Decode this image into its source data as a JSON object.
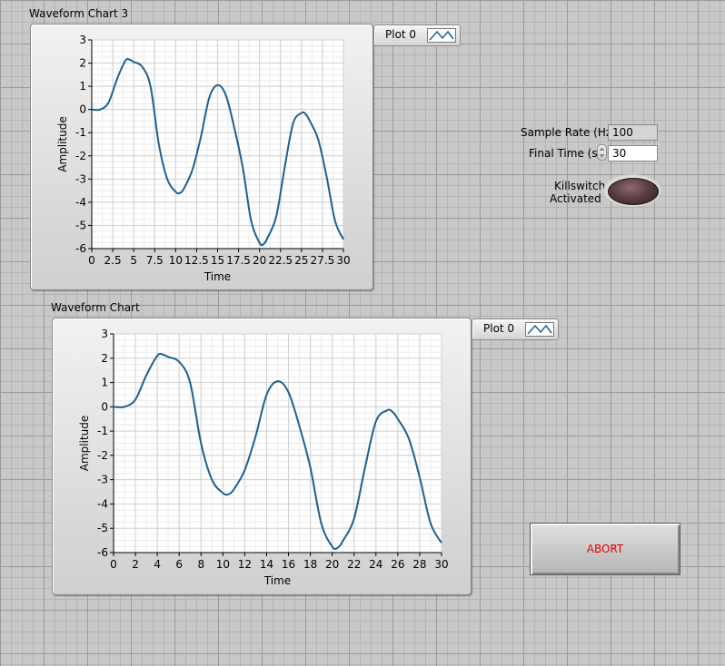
{
  "charts": [
    {
      "label": "Waveform Chart 3",
      "legend": "Plot 0",
      "xticks": [
        "0",
        "2.5",
        "5",
        "7.5",
        "10",
        "12.5",
        "15",
        "17.5",
        "20",
        "22.5",
        "25",
        "27.5",
        "30"
      ],
      "yticks": [
        "3",
        "2",
        "1",
        "0",
        "-1",
        "-2",
        "-3",
        "-4",
        "-5",
        "-6"
      ],
      "xlabel": "Time",
      "ylabel": "Amplitude"
    },
    {
      "label": "Waveform Chart",
      "legend": "Plot 0",
      "xticks": [
        "0",
        "2",
        "4",
        "6",
        "8",
        "10",
        "12",
        "14",
        "16",
        "18",
        "20",
        "22",
        "24",
        "26",
        "28",
        "30"
      ],
      "yticks": [
        "3",
        "2",
        "1",
        "0",
        "-1",
        "-2",
        "-3",
        "-4",
        "-5",
        "-6"
      ],
      "xlabel": "Time",
      "ylabel": "Amplitude"
    }
  ],
  "controls": {
    "sample_rate_label": "Sample Rate (Hz)",
    "sample_rate_value": "100",
    "final_time_label": "Final Time (s)",
    "final_time_value": "30",
    "killswitch_label_line1": "Killswitch",
    "killswitch_label_line2": "Activated",
    "abort_label": "ABORT"
  },
  "colors": {
    "trace": "#1f5f8f",
    "abort_text": "#e00000",
    "led_off": "#5e3f43"
  },
  "chart_data": [
    {
      "type": "line",
      "title": "Waveform Chart 3",
      "xlabel": "Time",
      "ylabel": "Amplitude",
      "xlim": [
        0,
        30
      ],
      "ylim": [
        -6,
        3
      ],
      "grid": true,
      "legend": "top-right",
      "series": [
        {
          "name": "Plot 0",
          "x": [
            0,
            1,
            2,
            3,
            4,
            4.5,
            5,
            6,
            7,
            8,
            9,
            10,
            10.5,
            11,
            12,
            13,
            14,
            15,
            16,
            17,
            18,
            19,
            20,
            20.5,
            21,
            22,
            23,
            24,
            25,
            25.5,
            26,
            27,
            28,
            29,
            30
          ],
          "y": [
            0,
            0,
            0.3,
            1.3,
            2.1,
            2.15,
            2.05,
            1.85,
            1.0,
            -1.5,
            -3.0,
            -3.55,
            -3.6,
            -3.4,
            -2.6,
            -1.2,
            0.5,
            1.05,
            0.6,
            -0.8,
            -2.5,
            -4.8,
            -5.75,
            -5.8,
            -5.5,
            -4.6,
            -2.5,
            -0.6,
            -0.15,
            -0.2,
            -0.5,
            -1.3,
            -2.9,
            -4.8,
            -5.6
          ]
        }
      ]
    },
    {
      "type": "line",
      "title": "Waveform Chart",
      "xlabel": "Time",
      "ylabel": "Amplitude",
      "xlim": [
        0,
        30
      ],
      "ylim": [
        -6,
        3
      ],
      "grid": true,
      "legend": "top-right",
      "series": [
        {
          "name": "Plot 0",
          "x": [
            0,
            1,
            2,
            3,
            4,
            4.5,
            5,
            6,
            7,
            8,
            9,
            10,
            10.5,
            11,
            12,
            13,
            14,
            15,
            16,
            17,
            18,
            19,
            20,
            20.5,
            21,
            22,
            23,
            24,
            25,
            25.5,
            26,
            27,
            28,
            29,
            30
          ],
          "y": [
            0,
            0,
            0.3,
            1.3,
            2.1,
            2.15,
            2.05,
            1.85,
            1.0,
            -1.5,
            -3.0,
            -3.55,
            -3.6,
            -3.4,
            -2.6,
            -1.2,
            0.5,
            1.05,
            0.6,
            -0.8,
            -2.5,
            -4.8,
            -5.75,
            -5.8,
            -5.5,
            -4.6,
            -2.5,
            -0.6,
            -0.15,
            -0.2,
            -0.5,
            -1.3,
            -2.9,
            -4.8,
            -5.6
          ]
        }
      ]
    }
  ]
}
